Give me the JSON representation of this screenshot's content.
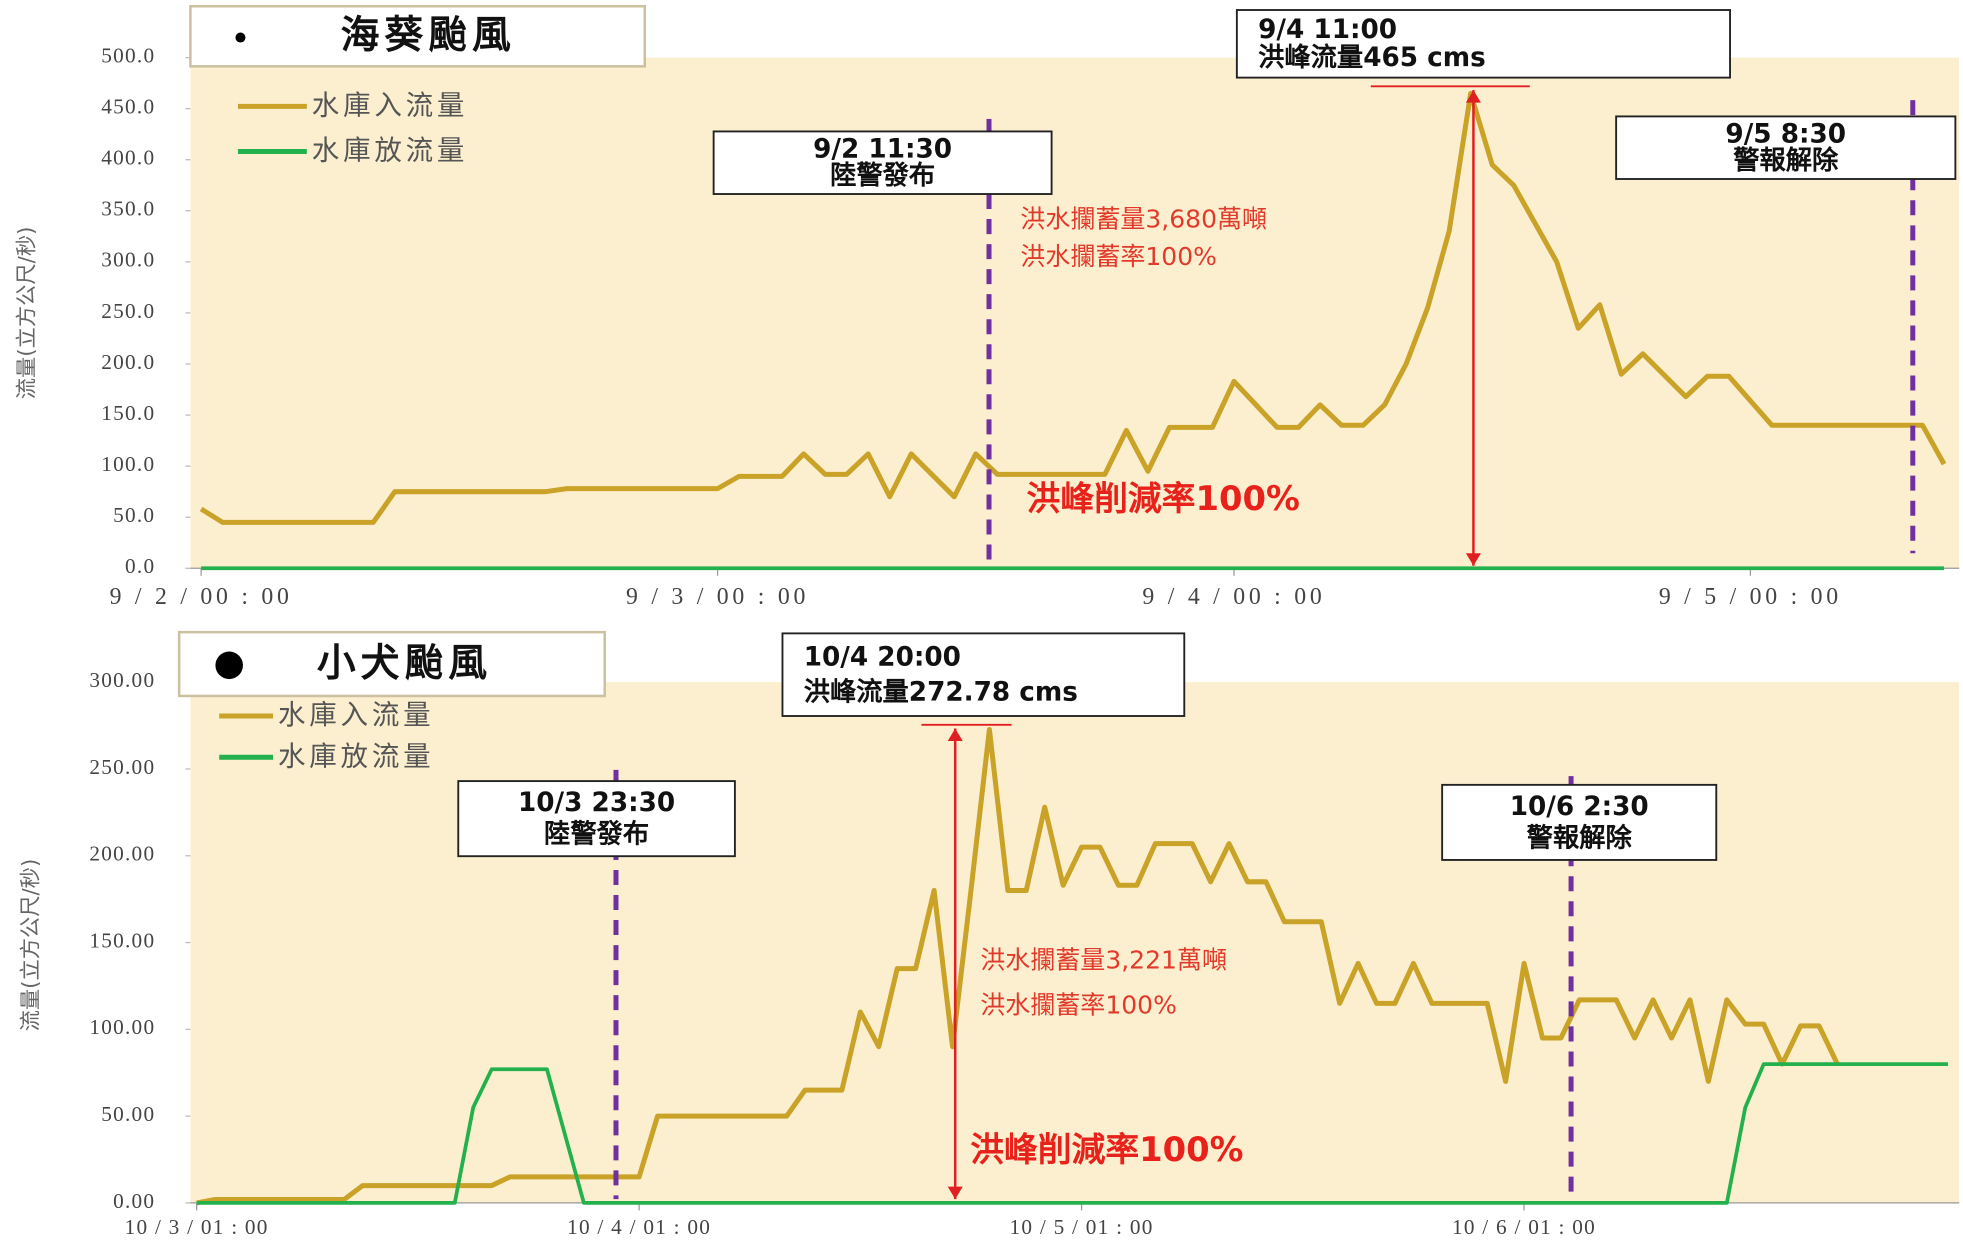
{
  "chart_data": [
    {
      "type": "line",
      "title": "海葵颱風",
      "y_label": "流量(立方公尺/秒)",
      "xlim": [
        -0.5,
        81.7
      ],
      "xticks": [
        {
          "value": 0,
          "label": "9 / 2 / 00 : 00"
        },
        {
          "value": 24,
          "label": "9 / 3 / 00 : 00"
        },
        {
          "value": 48,
          "label": "9 / 4 / 00 : 00"
        },
        {
          "value": 72,
          "label": "9 / 5 / 00 : 00"
        }
      ],
      "ylim": [
        0,
        500
      ],
      "yticks": [
        {
          "value": 0,
          "label": "0.0"
        },
        {
          "value": 50,
          "label": "50.0"
        },
        {
          "value": 100,
          "label": "100.0"
        },
        {
          "value": 150,
          "label": "150.0"
        },
        {
          "value": 200,
          "label": "200.0"
        },
        {
          "value": 250,
          "label": "250.0"
        },
        {
          "value": 300,
          "label": "300.0"
        },
        {
          "value": 350,
          "label": "350.0"
        },
        {
          "value": 400,
          "label": "400.0"
        },
        {
          "value": 450,
          "label": "450.0"
        },
        {
          "value": 500,
          "label": "500.0"
        }
      ],
      "series": [
        {
          "name": "水庫入流量",
          "color": "#c9a227",
          "x": [
            0,
            1,
            8,
            9,
            16,
            17,
            24,
            25,
            27,
            28,
            29,
            30,
            31,
            32,
            33,
            35,
            36,
            37,
            42,
            43,
            44,
            45,
            47,
            48,
            50,
            51,
            52,
            53,
            54,
            55,
            56,
            57,
            58,
            59,
            60,
            61,
            63,
            64,
            65,
            66,
            67,
            69,
            70,
            71,
            73,
            80,
            81
          ],
          "values": [
            58,
            45,
            45,
            75,
            75,
            78,
            78,
            90,
            90,
            112,
            92,
            92,
            112,
            70,
            112,
            70,
            112,
            92,
            92,
            135,
            95,
            138,
            138,
            183,
            138,
            138,
            160,
            140,
            140,
            160,
            200,
            255,
            330,
            465,
            395,
            375,
            300,
            235,
            258,
            190,
            210,
            168,
            188,
            188,
            140,
            140,
            102
          ]
        },
        {
          "name": "水庫放流量",
          "color": "#22b14c",
          "x": [
            0,
            81
          ],
          "values": [
            0,
            0
          ]
        }
      ],
      "annotations": [
        {
          "lines": [
            "9/4 11:00",
            "洪峰流量465 cms"
          ]
        },
        {
          "lines": [
            "9/2 11:30",
            "陸警發布"
          ]
        },
        {
          "lines": [
            "9/5 8:30",
            "警報解除"
          ]
        },
        {
          "lines": [
            "洪水攔蓄量3,680萬噸",
            "洪水攔蓄率100%",
            "洪峰削減率100%"
          ]
        }
      ]
    },
    {
      "type": "line",
      "title": "小犬颱風",
      "y_label": "流量(立方公尺/秒)",
      "xlim": [
        -0.34,
        95.6
      ],
      "xticks": [
        {
          "value": 0,
          "label": "10 / 3 / 01 : 00"
        },
        {
          "value": 24,
          "label": "10 / 4 / 01 : 00"
        },
        {
          "value": 48,
          "label": "10 / 5 / 01 : 00"
        },
        {
          "value": 72,
          "label": "10 / 6 / 01 : 00"
        }
      ],
      "ylim": [
        0,
        300
      ],
      "yticks": [
        {
          "value": 0,
          "label": "0.00"
        },
        {
          "value": 50,
          "label": "50.00"
        },
        {
          "value": 100,
          "label": "100.00"
        },
        {
          "value": 150,
          "label": "150.00"
        },
        {
          "value": 200,
          "label": "200.00"
        },
        {
          "value": 250,
          "label": "250.00"
        },
        {
          "value": 300,
          "label": "300.00"
        }
      ],
      "series": [
        {
          "name": "水庫入流量",
          "color": "#c9a227",
          "x": [
            0,
            1,
            8,
            9,
            16,
            17,
            24,
            25,
            32,
            33,
            35,
            36,
            37,
            38,
            39,
            40,
            41,
            42,
            43,
            44,
            45,
            46,
            47,
            48,
            49,
            50,
            51,
            52,
            53,
            54,
            55,
            56,
            57,
            58,
            59,
            61,
            62,
            63,
            64,
            65,
            66,
            67,
            69,
            70,
            71,
            72,
            73,
            74,
            75,
            77,
            78,
            79,
            80,
            81,
            82,
            83,
            84,
            85,
            86,
            87,
            88,
            89
          ],
          "values": [
            0,
            2,
            2,
            10,
            10,
            15,
            15,
            50,
            50,
            65,
            65,
            110,
            90,
            135,
            135,
            180,
            90,
            180,
            272.78,
            180,
            180,
            228,
            183,
            205,
            205,
            183,
            183,
            207,
            207,
            207,
            185,
            207,
            185,
            185,
            162,
            162,
            115,
            138,
            115,
            115,
            138,
            115,
            115,
            115,
            70,
            138,
            95,
            95,
            117,
            117,
            95,
            117,
            95,
            117,
            70,
            117,
            103,
            103,
            80,
            102,
            102,
            80
          ]
        },
        {
          "name": "水庫放流量",
          "color": "#22b14c",
          "x": [
            0,
            14,
            15,
            16,
            19,
            21,
            83,
            84,
            85,
            95
          ],
          "values": [
            0,
            0,
            55,
            77,
            77,
            0,
            0,
            55,
            80,
            80
          ]
        }
      ],
      "annotations": [
        {
          "lines": [
            "10/4 20:00",
            "洪峰流量272.78 cms"
          ]
        },
        {
          "lines": [
            "10/3 23:30",
            "陸警發布"
          ]
        },
        {
          "lines": [
            "10/6 2:30",
            "警報解除"
          ]
        },
        {
          "lines": [
            "洪水攔蓄量3,221萬噸",
            "洪水攔蓄率100%",
            "洪峰削減率100%"
          ]
        }
      ]
    }
  ]
}
